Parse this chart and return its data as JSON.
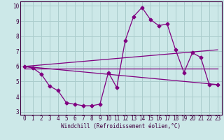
{
  "xlabel": "Windchill (Refroidissement éolien,°C)",
  "bg_color": "#cce8e8",
  "grid_color": "#aacccc",
  "line_color": "#800080",
  "spine_color": "#400040",
  "xlim": [
    -0.5,
    23.5
  ],
  "ylim": [
    2.8,
    10.3
  ],
  "yticks": [
    3,
    4,
    5,
    6,
    7,
    8,
    9,
    10
  ],
  "xticks": [
    0,
    1,
    2,
    3,
    4,
    5,
    6,
    7,
    8,
    9,
    10,
    11,
    12,
    13,
    14,
    15,
    16,
    17,
    18,
    19,
    20,
    21,
    22,
    23
  ],
  "series1_x": [
    0,
    1,
    2,
    3,
    4,
    5,
    6,
    7,
    8,
    9,
    10,
    11,
    12,
    13,
    14,
    15,
    16,
    17,
    18,
    19,
    20,
    21,
    22,
    23
  ],
  "series1_y": [
    6.0,
    5.9,
    5.5,
    4.7,
    4.4,
    3.6,
    3.5,
    3.4,
    3.4,
    3.5,
    5.6,
    4.6,
    7.7,
    9.3,
    9.9,
    9.1,
    8.7,
    8.8,
    7.1,
    5.6,
    6.9,
    6.6,
    4.8,
    4.8
  ],
  "series2_x": [
    0,
    23
  ],
  "series2_y": [
    6.0,
    4.8
  ],
  "series3_x": [
    0,
    23
  ],
  "series3_y": [
    5.85,
    5.85
  ],
  "series4_x": [
    0,
    23
  ],
  "series4_y": [
    6.0,
    7.1
  ],
  "marker": "D",
  "markersize": 2.5,
  "linewidth": 0.9,
  "tick_fontsize": 5.5,
  "xlabel_fontsize": 5.5
}
